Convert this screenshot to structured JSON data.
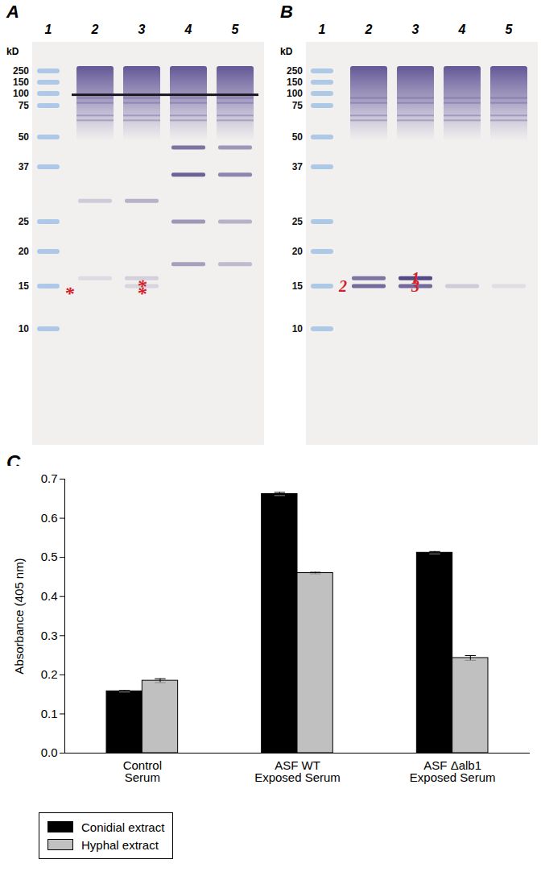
{
  "figure": {
    "panels": [
      {
        "label": "A",
        "lanes": [
          "1",
          "2",
          "3",
          "4",
          "5"
        ],
        "unit": "kD",
        "markers": [
          250,
          150,
          100,
          75,
          50,
          37,
          25,
          20,
          15,
          10
        ],
        "annotations": [
          {
            "text": "*",
            "lane": 2,
            "kd": 15,
            "side": "left"
          },
          {
            "text": "*",
            "lane": 3,
            "kd": 16,
            "side": "center"
          },
          {
            "text": "*",
            "lane": 3,
            "kd": 15,
            "side": "center"
          }
        ]
      },
      {
        "label": "B",
        "lanes": [
          "1",
          "2",
          "3",
          "4",
          "5"
        ],
        "unit": "kD",
        "markers": [
          250,
          150,
          100,
          75,
          50,
          37,
          25,
          20,
          15,
          10
        ],
        "annotations": [
          {
            "text": "1",
            "lane": 3,
            "kd": 16,
            "side": "center"
          },
          {
            "text": "2",
            "lane": 2,
            "kd": 15,
            "side": "left"
          },
          {
            "text": "3",
            "lane": 3,
            "kd": 15,
            "side": "center"
          }
        ]
      }
    ]
  },
  "chart_data": {
    "type": "bar",
    "title": "C",
    "categories": [
      "Control\nSerum",
      "ASF WT\nExposed Serum",
      "ASF Δalb1\nExposed Serum"
    ],
    "y_label": "Absorbance (405 nm)",
    "series": [
      {
        "name": "Conidial extract",
        "color": "#000000",
        "values": [
          0.158,
          0.662,
          0.512
        ],
        "errors": [
          0.002,
          0.004,
          0.003
        ]
      },
      {
        "name": "Hyphal extract",
        "color": "#c0c0c0",
        "values": [
          0.185,
          0.46,
          0.243
        ],
        "errors": [
          0.005,
          0.002,
          0.006
        ]
      }
    ],
    "ylim": [
      0,
      0.7
    ],
    "yticks": [
      {
        "value": 0,
        "label": "0.0"
      },
      0.1,
      0.2,
      0.3,
      0.4,
      0.5,
      0.6,
      0.7
    ],
    "legend": "bottom-left",
    "grid": false
  }
}
